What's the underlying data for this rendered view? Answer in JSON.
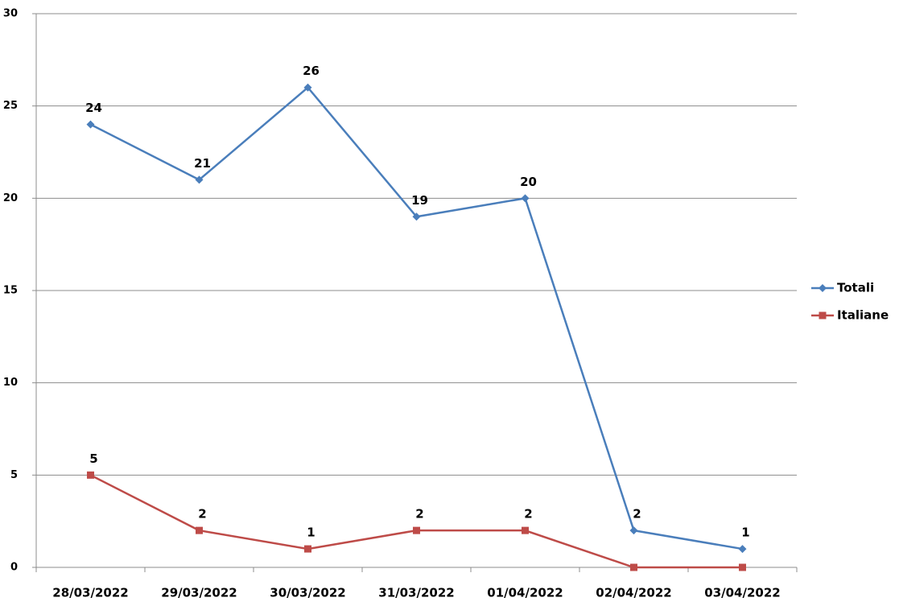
{
  "chart_data": {
    "type": "line",
    "categories": [
      "28/03/2022",
      "29/03/2022",
      "30/03/2022",
      "31/03/2022",
      "01/04/2022",
      "02/04/2022",
      "03/04/2022"
    ],
    "series": [
      {
        "name": "Totali",
        "color": "#4a7ebb",
        "marker": "diamond",
        "values": [
          24,
          21,
          26,
          19,
          20,
          2,
          1
        ]
      },
      {
        "name": "Italiane",
        "color": "#be4b48",
        "marker": "square",
        "values": [
          5,
          2,
          1,
          2,
          2,
          0,
          0
        ],
        "value_labels": [
          "5",
          "2",
          "1",
          "2",
          "2",
          null,
          null
        ]
      }
    ],
    "ylim": [
      0,
      30
    ],
    "yticks": [
      0,
      5,
      10,
      15,
      20,
      25,
      30
    ],
    "grid": true,
    "legend": "right"
  }
}
